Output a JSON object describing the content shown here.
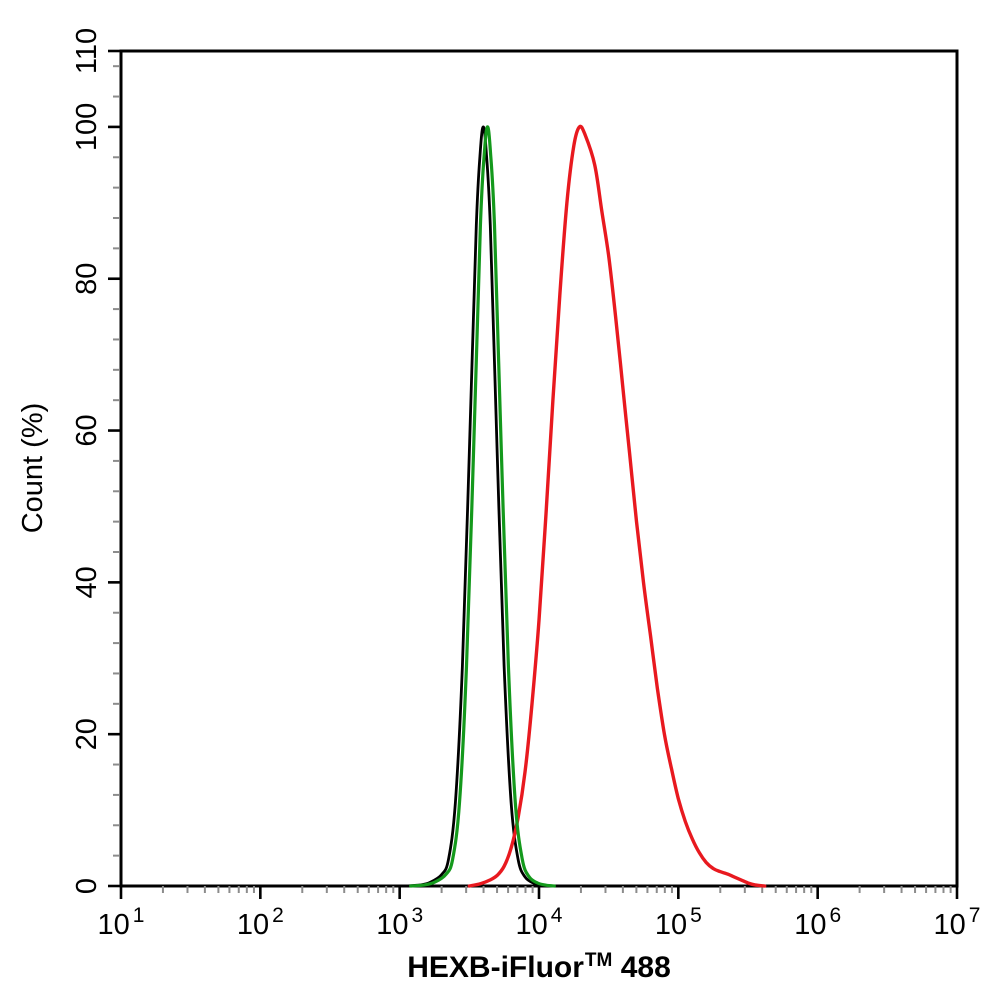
{
  "chart_data": {
    "type": "line",
    "subtype": "flow-cytometry-histogram",
    "title": "",
    "xlabel": "HEXB-iFluor™ 488",
    "xlabel_parts": {
      "prefix": "HEXB-iFluor",
      "superscript": "TM",
      "suffix": " 488"
    },
    "ylabel": "Count  (%)",
    "x_scale": "log10",
    "x_range": [
      10,
      10000000
    ],
    "y_range": [
      0,
      110
    ],
    "grid": "off",
    "legend": "none",
    "x_major_ticks": [
      {
        "base": "10",
        "exp": "1",
        "value": 10
      },
      {
        "base": "10",
        "exp": "2",
        "value": 100
      },
      {
        "base": "10",
        "exp": "3",
        "value": 1000
      },
      {
        "base": "10",
        "exp": "4",
        "value": 10000
      },
      {
        "base": "10",
        "exp": "5",
        "value": 100000
      },
      {
        "base": "10",
        "exp": "6",
        "value": 1000000
      },
      {
        "base": "10",
        "exp": "7",
        "value": 10000000
      }
    ],
    "x_minor_tick_multiples": [
      2,
      3,
      4,
      5,
      6,
      7,
      8,
      9
    ],
    "y_major_ticks": [
      0,
      20,
      40,
      60,
      80,
      100,
      110
    ],
    "y_minor_step": 4,
    "series": [
      {
        "name": "black-curve",
        "color": "#000000",
        "stroke_width": 2.8,
        "peak_x": 3980,
        "peak_y": 100,
        "points": [
          [
            1120,
            0
          ],
          [
            1410,
            0.15
          ],
          [
            1660,
            0.5
          ],
          [
            2000,
            1.5
          ],
          [
            2240,
            3.5
          ],
          [
            2510,
            11
          ],
          [
            2820,
            29
          ],
          [
            3160,
            57
          ],
          [
            3550,
            87
          ],
          [
            3800,
            97
          ],
          [
            3980,
            100
          ],
          [
            4170,
            97
          ],
          [
            4470,
            87
          ],
          [
            5010,
            57
          ],
          [
            5620,
            29
          ],
          [
            6310,
            11
          ],
          [
            7080,
            3.5
          ],
          [
            7940,
            1.2
          ],
          [
            9120,
            0.4
          ],
          [
            10470,
            0.1
          ],
          [
            12020,
            0
          ]
        ]
      },
      {
        "name": "red-curve",
        "color": "#e8191f",
        "stroke_width": 3.4,
        "peak_x": 19500,
        "peak_y": 100,
        "points": [
          [
            3160,
            0
          ],
          [
            3800,
            0.3
          ],
          [
            4470,
            0.8
          ],
          [
            5010,
            1.4
          ],
          [
            5620,
            2.6
          ],
          [
            6310,
            5
          ],
          [
            7080,
            9
          ],
          [
            7940,
            15
          ],
          [
            8910,
            24
          ],
          [
            10000,
            35
          ],
          [
            11220,
            49
          ],
          [
            12590,
            64
          ],
          [
            14130,
            78
          ],
          [
            15850,
            90
          ],
          [
            17780,
            97.5
          ],
          [
            19500,
            100
          ],
          [
            21380,
            99
          ],
          [
            25120,
            95
          ],
          [
            28180,
            89
          ],
          [
            31620,
            83
          ],
          [
            35480,
            75
          ],
          [
            39810,
            66
          ],
          [
            44670,
            57
          ],
          [
            50120,
            48
          ],
          [
            56230,
            40
          ],
          [
            63100,
            33
          ],
          [
            70800,
            26
          ],
          [
            79430,
            20
          ],
          [
            89130,
            15.5
          ],
          [
            100000,
            11.5
          ],
          [
            112200,
            8.5
          ],
          [
            125900,
            6.2
          ],
          [
            141300,
            4.4
          ],
          [
            158500,
            3.1
          ],
          [
            177800,
            2.3
          ],
          [
            199500,
            1.9
          ],
          [
            223900,
            1.6
          ],
          [
            251200,
            1.2
          ],
          [
            281800,
            0.8
          ],
          [
            316200,
            0.4
          ],
          [
            354800,
            0.15
          ],
          [
            416900,
            0
          ]
        ]
      },
      {
        "name": "green-curve",
        "color": "#14991c",
        "stroke_width": 3.2,
        "peak_x": 4270,
        "peak_y": 100,
        "points": [
          [
            1200,
            0
          ],
          [
            1510,
            0.15
          ],
          [
            1780,
            0.5
          ],
          [
            2140,
            1.5
          ],
          [
            2400,
            3.5
          ],
          [
            2690,
            11
          ],
          [
            3020,
            29
          ],
          [
            3390,
            57
          ],
          [
            3800,
            87
          ],
          [
            4070,
            97
          ],
          [
            4270,
            100
          ],
          [
            4470,
            97
          ],
          [
            4790,
            87
          ],
          [
            5370,
            57
          ],
          [
            6030,
            29
          ],
          [
            6760,
            11
          ],
          [
            7590,
            3.5
          ],
          [
            8510,
            1.2
          ],
          [
            9770,
            0.4
          ],
          [
            11220,
            0.1
          ],
          [
            12880,
            0
          ]
        ]
      }
    ]
  },
  "colors": {
    "background": "#ffffff",
    "axis": "#000000",
    "minor_tick": "#8c8c8c",
    "black_series": "#000000",
    "green_series": "#14991c",
    "red_series": "#e8191f"
  }
}
